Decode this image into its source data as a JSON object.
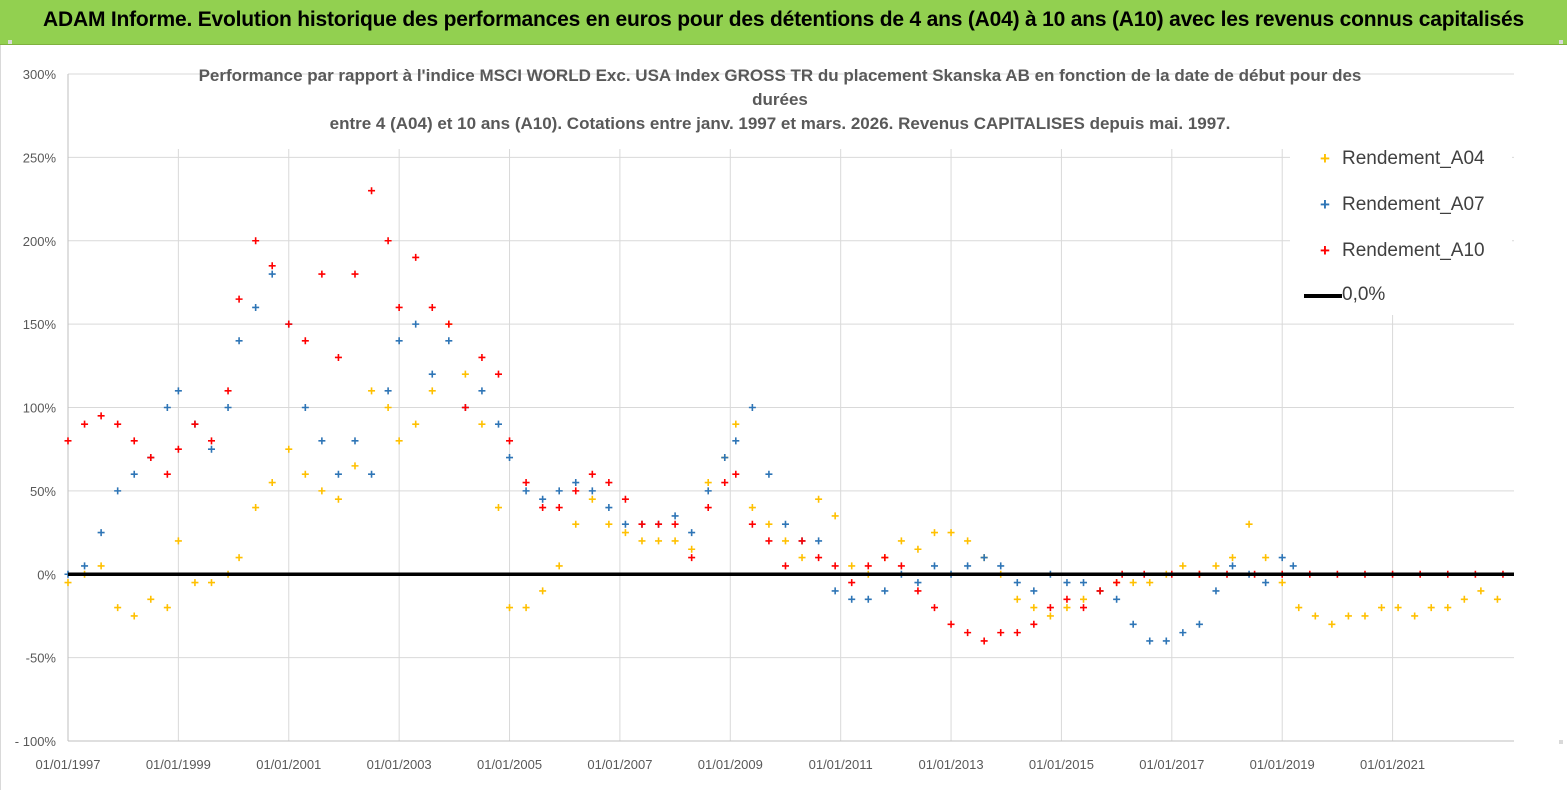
{
  "banner": {
    "title": "ADAM Informe. Evolution historique des performances en euros pour des détentions de 4 ans (A04) à 10 ans (A10) avec les revenus connus capitalisés"
  },
  "chart_data": {
    "type": "scatter",
    "title_lines": [
      "Performance par rapport à l'indice MSCI WORLD Exc. USA Index GROSS TR  du placement Skanska AB en fonction de la date de début pour des",
      "durées",
      "entre 4 (A04) et 10 ans (A10).  Cotations entre janv. 1997 et mars. 2026. Revenus CAPITALISES depuis mai. 1997."
    ],
    "xlim": [
      1997.0,
      2023.2
    ],
    "ylim": [
      -100,
      300
    ],
    "y_ticks": [
      300,
      250,
      200,
      150,
      100,
      50,
      0,
      -50,
      -100
    ],
    "y_tick_labels": [
      "300%",
      "250%",
      "200%",
      "150%",
      "100%",
      "50%",
      "0%",
      "-50%",
      "- 100%"
    ],
    "x_ticks": [
      1997,
      1999,
      2001,
      2003,
      2005,
      2007,
      2009,
      2011,
      2013,
      2015,
      2017,
      2019,
      2021
    ],
    "x_tick_labels": [
      "01/01/1997",
      "01/01/1999",
      "01/01/2001",
      "01/01/2003",
      "01/01/2005",
      "01/01/2007",
      "01/01/2009",
      "01/01/2011",
      "01/01/2013",
      "01/01/2015",
      "01/01/2017",
      "01/01/2019",
      "01/01/2021"
    ],
    "zero_line": {
      "name": "0,0%",
      "value": 0,
      "color": "#000000"
    },
    "series": [
      {
        "name": "Rendement_A04",
        "color": "#ffc000",
        "x": [
          1997.0,
          1997.3,
          1997.6,
          1997.9,
          1998.2,
          1998.5,
          1998.8,
          1999.0,
          1999.3,
          1999.6,
          1999.9,
          2000.1,
          2000.4,
          2000.7,
          2001.0,
          2001.3,
          2001.6,
          2001.9,
          2002.2,
          2002.5,
          2002.8,
          2003.0,
          2003.3,
          2003.6,
          2003.9,
          2004.2,
          2004.5,
          2004.8,
          2005.0,
          2005.3,
          2005.6,
          2005.9,
          2006.2,
          2006.5,
          2006.8,
          2007.1,
          2007.4,
          2007.7,
          2008.0,
          2008.3,
          2008.6,
          2008.9,
          2009.1,
          2009.4,
          2009.7,
          2010.0,
          2010.3,
          2010.6,
          2010.9,
          2011.2,
          2011.5,
          2011.8,
          2012.1,
          2012.4,
          2012.7,
          2013.0,
          2013.3,
          2013.6,
          2013.9,
          2014.2,
          2014.5,
          2014.8,
          2015.1,
          2015.4,
          2015.7,
          2016.0,
          2016.3,
          2016.6,
          2016.9,
          2017.2,
          2017.5,
          2017.8,
          2018.1,
          2018.4,
          2018.7,
          2019.0,
          2019.3,
          2019.6,
          2019.9,
          2020.2,
          2020.5,
          2020.8,
          2021.1,
          2021.4,
          2021.7,
          2022.0,
          2022.3,
          2022.6,
          2022.9
        ],
        "y": [
          -5,
          0,
          5,
          -20,
          -25,
          -15,
          -20,
          20,
          -5,
          -5,
          0,
          10,
          40,
          55,
          75,
          60,
          50,
          45,
          65,
          110,
          100,
          80,
          90,
          110,
          150,
          120,
          90,
          40,
          -20,
          -20,
          -10,
          5,
          30,
          45,
          30,
          25,
          20,
          20,
          20,
          15,
          55,
          70,
          90,
          40,
          30,
          20,
          10,
          45,
          35,
          5,
          0,
          10,
          20,
          15,
          25,
          25,
          20,
          10,
          0,
          -15,
          -20,
          -25,
          -20,
          -15,
          -10,
          -5,
          -5,
          -5,
          0,
          5,
          0,
          5,
          10,
          30,
          10,
          -5,
          -20,
          -25,
          -30,
          -25,
          -25,
          -20,
          -20,
          -25,
          -20,
          -20,
          -15,
          -10,
          -15
        ]
      },
      {
        "name": "Rendement_A07",
        "color": "#2e75b6",
        "x": [
          1997.0,
          1997.3,
          1997.6,
          1997.9,
          1998.2,
          1998.5,
          1998.8,
          1999.0,
          1999.3,
          1999.6,
          1999.9,
          2000.1,
          2000.4,
          2000.7,
          2001.0,
          2001.3,
          2001.6,
          2001.9,
          2002.2,
          2002.5,
          2002.8,
          2003.0,
          2003.3,
          2003.6,
          2003.9,
          2004.2,
          2004.5,
          2004.8,
          2005.0,
          2005.3,
          2005.6,
          2005.9,
          2006.2,
          2006.5,
          2006.8,
          2007.1,
          2007.4,
          2007.7,
          2008.0,
          2008.3,
          2008.6,
          2008.9,
          2009.1,
          2009.4,
          2009.7,
          2010.0,
          2010.3,
          2010.6,
          2010.9,
          2011.2,
          2011.5,
          2011.8,
          2012.1,
          2012.4,
          2012.7,
          2013.0,
          2013.3,
          2013.6,
          2013.9,
          2014.2,
          2014.5,
          2014.8,
          2015.1,
          2015.4,
          2015.7,
          2016.0,
          2016.3,
          2016.6,
          2016.9,
          2017.2,
          2017.5,
          2017.8,
          2018.1,
          2018.4,
          2018.7,
          2019.0,
          2019.2
        ],
        "y": [
          0,
          5,
          25,
          50,
          60,
          70,
          100,
          110,
          90,
          75,
          100,
          140,
          160,
          180,
          150,
          100,
          80,
          60,
          80,
          60,
          110,
          140,
          150,
          120,
          140,
          100,
          110,
          90,
          70,
          50,
          45,
          50,
          55,
          50,
          40,
          30,
          30,
          30,
          35,
          25,
          50,
          70,
          80,
          100,
          60,
          30,
          20,
          20,
          -10,
          -15,
          -15,
          -10,
          0,
          -5,
          5,
          0,
          5,
          10,
          5,
          -5,
          -10,
          0,
          -5,
          -5,
          -10,
          -15,
          -30,
          -40,
          -40,
          -35,
          -30,
          -10,
          5,
          0,
          -5,
          10,
          5
        ]
      },
      {
        "name": "Rendement_A10",
        "color": "#ff0000",
        "x": [
          1997.0,
          1997.3,
          1997.6,
          1997.9,
          1998.2,
          1998.5,
          1998.8,
          1999.0,
          1999.3,
          1999.6,
          1999.9,
          2000.1,
          2000.4,
          2000.7,
          2001.0,
          2001.3,
          2001.6,
          2001.9,
          2002.2,
          2002.5,
          2002.8,
          2003.0,
          2003.3,
          2003.6,
          2003.9,
          2004.2,
          2004.5,
          2004.8,
          2005.0,
          2005.3,
          2005.6,
          2005.9,
          2006.2,
          2006.5,
          2006.8,
          2007.1,
          2007.4,
          2007.7,
          2008.0,
          2008.3,
          2008.6,
          2008.9,
          2009.1,
          2009.4,
          2009.7,
          2010.0,
          2010.3,
          2010.6,
          2010.9,
          2011.2,
          2011.5,
          2011.8,
          2012.1,
          2012.4,
          2012.7,
          2013.0,
          2013.3,
          2013.6,
          2013.9,
          2014.2,
          2014.5,
          2014.8,
          2015.1,
          2015.4,
          2015.7,
          2016.0,
          2016.1,
          2016.5,
          2017.0,
          2017.5,
          2018.0,
          2018.5,
          2019.0,
          2019.5,
          2020.0,
          2020.5,
          2021.0,
          2021.5,
          2022.0,
          2022.5,
          2023.0
        ],
        "y": [
          80,
          90,
          95,
          90,
          80,
          70,
          60,
          75,
          90,
          80,
          110,
          165,
          200,
          185,
          150,
          140,
          180,
          130,
          180,
          230,
          200,
          160,
          190,
          160,
          150,
          100,
          130,
          120,
          80,
          55,
          40,
          40,
          50,
          60,
          55,
          45,
          30,
          30,
          30,
          10,
          40,
          55,
          60,
          30,
          20,
          5,
          20,
          10,
          5,
          -5,
          5,
          10,
          5,
          -10,
          -20,
          -30,
          -35,
          -40,
          -35,
          -35,
          -30,
          -20,
          -15,
          -20,
          -10,
          -5,
          0,
          0,
          0,
          0,
          0,
          0,
          0,
          0,
          0,
          0,
          0,
          0,
          0,
          0,
          0
        ]
      }
    ]
  }
}
